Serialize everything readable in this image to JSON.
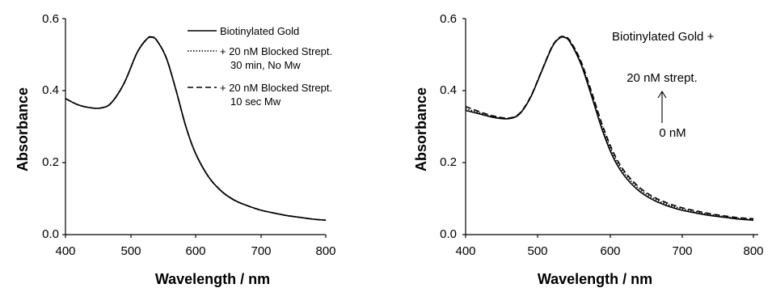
{
  "chart_data": [
    {
      "type": "line",
      "xlabel": "Wavelength / nm",
      "ylabel": "Absorbance",
      "xlim": [
        400,
        800
      ],
      "ylim": [
        0.0,
        0.6
      ],
      "xticks": [
        "400",
        "500",
        "600",
        "700",
        "800"
      ],
      "yticks": [
        "0.0",
        "0.2",
        "0.4",
        "0.6"
      ],
      "grid": false,
      "legend": "top-right",
      "series": [
        {
          "name": "Biotinylated Gold",
          "style": "solid",
          "x": [
            400,
            420,
            440,
            455,
            470,
            490,
            510,
            525,
            532,
            540,
            555,
            570,
            585,
            600,
            620,
            640,
            660,
            680,
            700,
            720,
            740,
            760,
            780,
            800
          ],
          "y": [
            0.378,
            0.36,
            0.352,
            0.352,
            0.365,
            0.42,
            0.505,
            0.543,
            0.548,
            0.54,
            0.49,
            0.4,
            0.3,
            0.225,
            0.16,
            0.12,
            0.095,
            0.08,
            0.068,
            0.06,
            0.053,
            0.048,
            0.043,
            0.04
          ]
        },
        {
          "name": "+ 20 nM Blocked Strept.\n30 min, No Mw",
          "style": "dotted",
          "x": [
            400,
            420,
            440,
            455,
            470,
            490,
            510,
            525,
            532,
            540,
            555,
            570,
            585,
            600,
            620,
            640,
            660,
            680,
            700,
            720,
            740,
            760,
            780,
            800
          ],
          "y": [
            0.378,
            0.36,
            0.352,
            0.352,
            0.366,
            0.421,
            0.506,
            0.544,
            0.549,
            0.541,
            0.491,
            0.401,
            0.301,
            0.226,
            0.161,
            0.121,
            0.096,
            0.08,
            0.068,
            0.06,
            0.053,
            0.048,
            0.043,
            0.04
          ]
        },
        {
          "name": "+ 20 nM Blocked Strept.\n10 sec Mw",
          "style": "dashed",
          "x": [
            400,
            420,
            440,
            455,
            470,
            490,
            510,
            525,
            532,
            540,
            555,
            570,
            585,
            600,
            620,
            640,
            660,
            680,
            700,
            720,
            740,
            760,
            780,
            800
          ],
          "y": [
            0.378,
            0.36,
            0.352,
            0.352,
            0.365,
            0.42,
            0.505,
            0.544,
            0.549,
            0.54,
            0.491,
            0.4,
            0.3,
            0.225,
            0.16,
            0.12,
            0.095,
            0.08,
            0.068,
            0.06,
            0.053,
            0.048,
            0.043,
            0.04
          ]
        }
      ]
    },
    {
      "type": "line",
      "xlabel": "Wavelength / nm",
      "ylabel": "Absorbance",
      "xlim": [
        400,
        800
      ],
      "ylim": [
        0.0,
        0.6
      ],
      "xticks": [
        "400",
        "500",
        "600",
        "700",
        "800"
      ],
      "yticks": [
        "0.0",
        "0.2",
        "0.4",
        "0.6"
      ],
      "grid": false,
      "annotations": {
        "title": "Biotinylated Gold +",
        "top": "20 nM strept.",
        "bottom": "0 nM"
      },
      "series": [
        {
          "style": "solid",
          "x": [
            400,
            420,
            440,
            460,
            475,
            490,
            505,
            520,
            530,
            537,
            545,
            560,
            575,
            590,
            605,
            620,
            640,
            660,
            680,
            700,
            720,
            740,
            760,
            780,
            800
          ],
          "y": [
            0.345,
            0.335,
            0.325,
            0.322,
            0.335,
            0.38,
            0.45,
            0.52,
            0.545,
            0.548,
            0.535,
            0.475,
            0.385,
            0.29,
            0.215,
            0.165,
            0.123,
            0.097,
            0.08,
            0.068,
            0.06,
            0.053,
            0.048,
            0.043,
            0.04
          ]
        },
        {
          "style": "dotted",
          "x": [
            400,
            420,
            440,
            460,
            475,
            490,
            505,
            520,
            530,
            537,
            545,
            560,
            575,
            590,
            605,
            620,
            640,
            660,
            680,
            700,
            720,
            740,
            760,
            780,
            800
          ],
          "y": [
            0.35,
            0.338,
            0.327,
            0.323,
            0.336,
            0.381,
            0.451,
            0.521,
            0.546,
            0.549,
            0.537,
            0.479,
            0.391,
            0.298,
            0.223,
            0.172,
            0.129,
            0.102,
            0.084,
            0.072,
            0.063,
            0.056,
            0.05,
            0.045,
            0.042
          ]
        },
        {
          "style": "dashed",
          "x": [
            400,
            420,
            440,
            460,
            475,
            490,
            505,
            520,
            530,
            537,
            545,
            560,
            575,
            590,
            605,
            620,
            640,
            660,
            680,
            700,
            720,
            740,
            760,
            780,
            800
          ],
          "y": [
            0.356,
            0.341,
            0.329,
            0.324,
            0.337,
            0.382,
            0.452,
            0.522,
            0.547,
            0.55,
            0.539,
            0.483,
            0.397,
            0.305,
            0.23,
            0.178,
            0.134,
            0.106,
            0.088,
            0.075,
            0.066,
            0.058,
            0.052,
            0.047,
            0.044
          ]
        }
      ]
    }
  ]
}
